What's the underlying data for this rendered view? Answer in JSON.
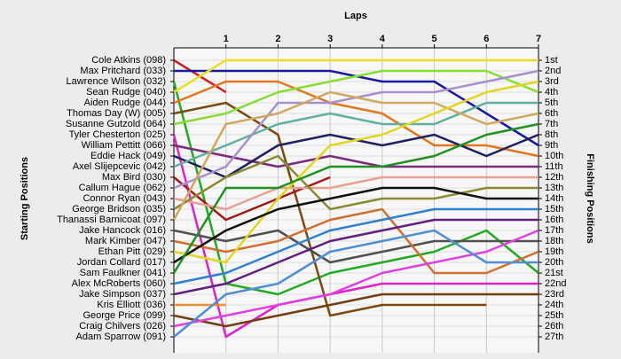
{
  "chart_data": {
    "type": "line",
    "title": "Laps",
    "ylabel": "Starting Positions",
    "y2label": "Finishing Positions",
    "x": [
      0,
      1,
      2,
      3,
      4,
      5,
      6,
      7
    ],
    "xlim": [
      0,
      7
    ],
    "xticks": [
      1,
      2,
      3,
      4,
      5,
      6,
      7
    ],
    "ylim": [
      1,
      27
    ],
    "grid": true,
    "y2ticks": [
      {
        "value": 1,
        "label": "1st"
      },
      {
        "value": 2,
        "label": "2nd"
      },
      {
        "value": 3,
        "label": "3rd"
      },
      {
        "value": 4,
        "label": "4th"
      },
      {
        "value": 5,
        "label": "5th"
      },
      {
        "value": 6,
        "label": "6th"
      },
      {
        "value": 7,
        "label": "7th"
      },
      {
        "value": 8,
        "label": "8th"
      },
      {
        "value": 9,
        "label": "9th"
      },
      {
        "value": 10,
        "label": "10th"
      },
      {
        "value": 11,
        "label": "11th"
      },
      {
        "value": 12,
        "label": "12th"
      },
      {
        "value": 13,
        "label": "13th"
      },
      {
        "value": 14,
        "label": "14th"
      },
      {
        "value": 15,
        "label": "15th"
      },
      {
        "value": 16,
        "label": "16th"
      },
      {
        "value": 17,
        "label": "17th"
      },
      {
        "value": 18,
        "label": "18th"
      },
      {
        "value": 19,
        "label": "19th"
      },
      {
        "value": 20,
        "label": "20th"
      },
      {
        "value": 21,
        "label": "21st"
      },
      {
        "value": 22,
        "label": "22nd"
      },
      {
        "value": 23,
        "label": "23rd"
      },
      {
        "value": 24,
        "label": "24th"
      },
      {
        "value": 25,
        "label": "25th"
      },
      {
        "value": 26,
        "label": "26th"
      },
      {
        "value": 27,
        "label": "27th"
      }
    ],
    "series": [
      {
        "name": "Cole Atkins (098)",
        "color": "#cc2222",
        "values": [
          1,
          4,
          null,
          null,
          null,
          null,
          null,
          null
        ]
      },
      {
        "name": "Max Pritchard (033)",
        "color": "#1a1aa0",
        "values": [
          2,
          2,
          2,
          2,
          3,
          3,
          6,
          9
        ]
      },
      {
        "name": "Lawrence Wilson (032)",
        "color": "#22aa22",
        "values": [
          3,
          22,
          23,
          21,
          20,
          19,
          17,
          21
        ]
      },
      {
        "name": "Sean Rudge (040)",
        "color": "#e8e020",
        "values": [
          4,
          1,
          1,
          1,
          1,
          1,
          1,
          1
        ]
      },
      {
        "name": "Aiden Rudge (044)",
        "color": "#e07820",
        "values": [
          5,
          3,
          3,
          5,
          6,
          9,
          9,
          10
        ]
      },
      {
        "name": "Thomas Day (W) (005)",
        "color": "#7a4a10",
        "values": [
          6,
          5,
          8,
          25,
          24,
          24,
          24,
          null
        ]
      },
      {
        "name": "Susanne Gutzold (064)",
        "color": "#88dd33",
        "values": [
          7,
          6,
          4,
          3,
          2,
          2,
          2,
          4
        ]
      },
      {
        "name": "Tyler Chesterton (025)",
        "color": "#dd22cc",
        "values": [
          8,
          27,
          24,
          23,
          22,
          22,
          22,
          22
        ]
      },
      {
        "name": "William Pettitt (066)",
        "color": "#7a2a7a",
        "values": [
          9,
          10,
          11,
          10,
          11,
          11,
          11,
          11
        ]
      },
      {
        "name": "Eddie Hack (049)",
        "color": "#202060",
        "values": [
          10,
          12,
          9,
          8,
          9,
          8,
          10,
          8
        ]
      },
      {
        "name": "Axel Slijepcevic (042)",
        "color": "#60b0a0",
        "values": [
          11,
          9,
          7,
          6,
          7,
          7,
          5,
          5
        ]
      },
      {
        "name": "Max Bird (030)",
        "color": "#a01818",
        "values": [
          12,
          16,
          14,
          12,
          null,
          null,
          null,
          null
        ]
      },
      {
        "name": "Callum Hague (062)",
        "color": "#a890d0",
        "values": [
          13,
          11,
          5,
          5,
          4,
          4,
          3,
          2
        ]
      },
      {
        "name": "Connor Ryan (043)",
        "color": "#e8a090",
        "values": [
          14,
          15,
          13,
          13,
          12,
          12,
          12,
          12
        ]
      },
      {
        "name": "George Bridson (035)",
        "color": "#8a8a30",
        "values": [
          15,
          12,
          10,
          15,
          14,
          14,
          13,
          13
        ]
      },
      {
        "name": "Thanassi Barnicoat (097)",
        "color": "#d0a860",
        "values": [
          16,
          7,
          6,
          4,
          5,
          5,
          7,
          6
        ]
      },
      {
        "name": "Jake Hancock (016)",
        "color": "#505050",
        "values": [
          17,
          18,
          17,
          20,
          19,
          18,
          18,
          18
        ]
      },
      {
        "name": "Mark Kimber (047)",
        "color": "#d07030",
        "values": [
          18,
          19,
          18,
          16,
          15,
          21,
          21,
          19
        ]
      },
      {
        "name": "Ethan Pitt (029)",
        "color": "#e0d820",
        "values": [
          19,
          20,
          14,
          9,
          8,
          6,
          4,
          3
        ]
      },
      {
        "name": "Jordan Collard (017)",
        "color": "#101010",
        "values": [
          20,
          17,
          15,
          14,
          13,
          13,
          14,
          14
        ]
      },
      {
        "name": "Sam Faulkner (041)",
        "color": "#209020",
        "values": [
          21,
          13,
          13,
          11,
          11,
          10,
          8,
          7
        ]
      },
      {
        "name": "Alex McRoberts (060)",
        "color": "#3080d0",
        "values": [
          22,
          21,
          19,
          17,
          16,
          15,
          15,
          15
        ]
      },
      {
        "name": "Jake Simpson (037)",
        "color": "#602080",
        "values": [
          23,
          22,
          20,
          18,
          17,
          16,
          16,
          16
        ]
      },
      {
        "name": "Kris Elliott (036)",
        "color": "#f09030",
        "values": [
          24,
          24,
          null,
          null,
          null,
          null,
          null,
          null
        ]
      },
      {
        "name": "George Price (099)",
        "color": "#704010",
        "values": [
          25,
          26,
          25,
          24,
          23,
          23,
          23,
          23
        ]
      },
      {
        "name": "Craig Chilvers (026)",
        "color": "#e040e0",
        "values": [
          26,
          25,
          24,
          23,
          21,
          20,
          19,
          17
        ]
      },
      {
        "name": "Adam Sparrow (091)",
        "color": "#5090d0",
        "values": [
          27,
          23,
          22,
          19,
          18,
          17,
          20,
          20
        ]
      }
    ]
  }
}
